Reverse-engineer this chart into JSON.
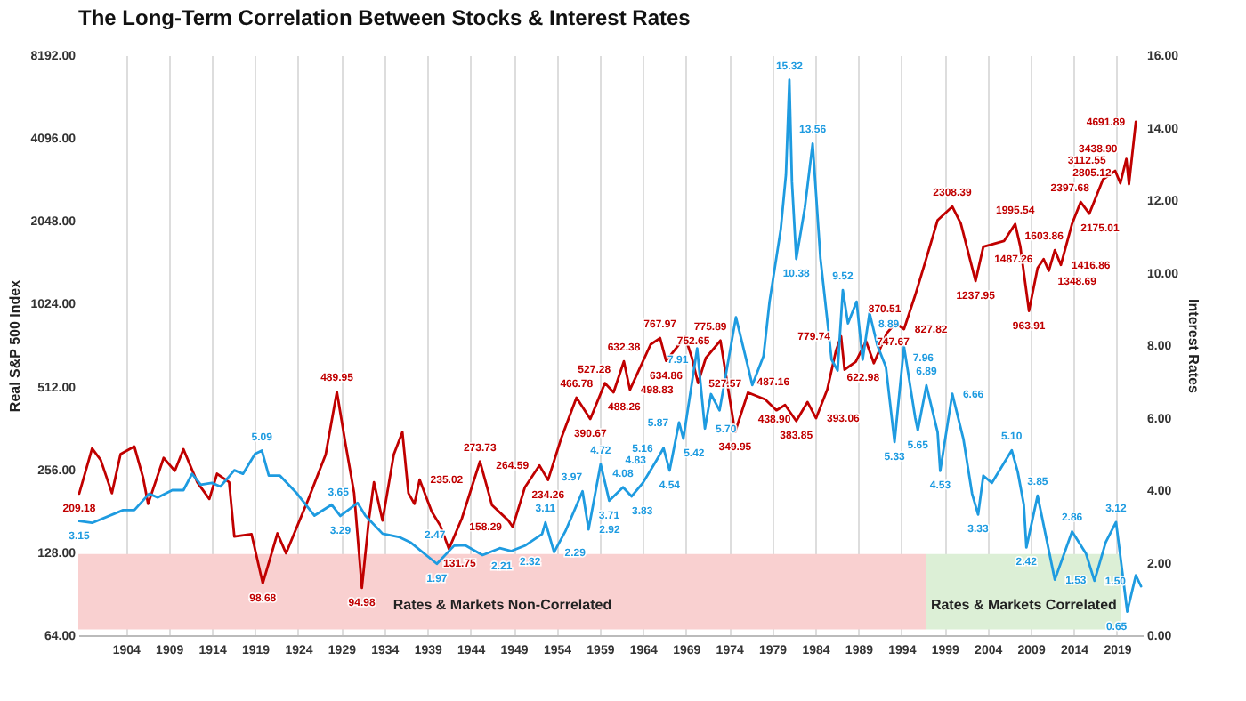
{
  "chart_data": {
    "type": "line",
    "title": "The Long-Term Correlation Between Stocks & Interest Rates",
    "ylabel": "Real S&P 500 Index",
    "y2label": "Interest Rates",
    "xlim": [
      1898.5,
      2022
    ],
    "xticks": [
      1904,
      1909,
      1914,
      1919,
      1924,
      1929,
      1934,
      1939,
      1944,
      1949,
      1954,
      1959,
      1964,
      1969,
      1974,
      1979,
      1984,
      1989,
      1994,
      1999,
      2004,
      2009,
      2014,
      2019
    ],
    "ylim": [
      64,
      8192
    ],
    "yticks": [
      {
        "value": 64,
        "label": "64.00"
      },
      {
        "value": 128,
        "label": "128.00"
      },
      {
        "value": 256,
        "label": "256.00"
      },
      {
        "value": 512,
        "label": "512.00"
      },
      {
        "value": 1024,
        "label": "1024.00"
      },
      {
        "value": 2048,
        "label": "2048.00"
      },
      {
        "value": 4096,
        "label": "4096.00"
      },
      {
        "value": 8192,
        "label": "8192.00"
      }
    ],
    "y2lim": [
      0,
      16
    ],
    "y2ticks": [
      {
        "value": 0,
        "label": "0.00"
      },
      {
        "value": 2,
        "label": "2.00"
      },
      {
        "value": 4,
        "label": "4.00"
      },
      {
        "value": 6,
        "label": "6.00"
      },
      {
        "value": 8,
        "label": "8.00"
      },
      {
        "value": 10,
        "label": "10.00"
      },
      {
        "value": 12,
        "label": "12.00"
      },
      {
        "value": 14,
        "label": "14.00"
      },
      {
        "value": 16,
        "label": "16.00"
      }
    ],
    "log": "y",
    "grid": "x",
    "bands": [
      {
        "axis": "x",
        "from": 1898.5,
        "to": 1996.9,
        "label": "Rates & Markets Non-Correlated",
        "color": "#f9d0d0"
      },
      {
        "axis": "x",
        "from": 1996.9,
        "to": 2019.5,
        "label": "Rates & Markets Correlated",
        "color": "#dcefd6"
      }
    ],
    "series": [
      {
        "color": "#c00000",
        "x": [
          1898.6,
          1900.1,
          1901.1,
          1902.4,
          1903.4,
          1905,
          1906,
          1906.6,
          1908.4,
          1909.7,
          1910.7,
          1912.3,
          1913.7,
          1914.6,
          1916,
          1916.6,
          1918.6,
          1919.9,
          1921.6,
          1922.6,
          1925.2,
          1927.2,
          1928.5,
          1929.5,
          1930.5,
          1931.4,
          1932.2,
          1932.8,
          1933.8,
          1935.1,
          1936.1,
          1936.8,
          1937.5,
          1938.1,
          1939.5,
          1940.5,
          1941.5,
          1943,
          1945.1,
          1946.5,
          1948.4,
          1948.9,
          1950.3,
          1952,
          1953,
          1954.5,
          1956.3,
          1957.9,
          1959.6,
          1960.6,
          1961.8,
          1962.5,
          1964.9,
          1966,
          1966.7,
          1968.9,
          1969.7,
          1970.4,
          1971.3,
          1973,
          1974.7,
          1976.2,
          1978.2,
          1979.5,
          1980.5,
          1981.8,
          1983.1,
          1984.1,
          1985.4,
          1986.4,
          1987,
          1987.4,
          1988.7,
          1989.9,
          1990.8,
          1992.3,
          1993.3,
          1994.3,
          1995.6,
          1996.9,
          1998.2,
          1999.9,
          2000.9,
          2002.6,
          2003.5,
          2005.9,
          2007.2,
          2007.8,
          2008.8,
          2009.8,
          2010.5,
          2011.1,
          2011.8,
          2012.5,
          2013.8,
          2014.8,
          2015.8,
          2017.4,
          2018.8,
          2019.4,
          2020.1,
          2020.4,
          2021.2
        ],
        "values": [
          209.18,
          305,
          277,
          210,
          291,
          310,
          240,
          192,
          282,
          253,
          303,
          230,
          200,
          247,
          230,
          146,
          149,
          98.68,
          150,
          127,
          200,
          290,
          489.95,
          317,
          210,
          94.98,
          167,
          230,
          167,
          290,
          350,
          210,
          192,
          235.02,
          180,
          160,
          131.75,
          170,
          273.73,
          190,
          167,
          158.29,
          220,
          264.59,
          234.26,
          330,
          466.78,
          390.67,
          527.28,
          488.26,
          632.38,
          498.83,
          728,
          767.97,
          634.86,
          775.89,
          650,
          527.57,
          650,
          752.65,
          349.95,
          487.16,
          460,
          420,
          438.9,
          383.85,
          450,
          393.06,
          500,
          690,
          779.74,
          590,
          630,
          747.67,
          622.98,
          800,
          870.51,
          827.82,
          1100,
          1500,
          2060,
          2308.39,
          2000,
          1237.95,
          1650,
          1730,
          1995.54,
          1650,
          963.91,
          1380,
          1487.26,
          1348.69,
          1603.86,
          1416.86,
          2000,
          2397.68,
          2175.01,
          2900,
          3112.55,
          2805.12,
          3438.9,
          2782,
          4691.89
        ],
        "value_labels": [
          "209.18",
          null,
          null,
          null,
          null,
          null,
          null,
          null,
          null,
          null,
          null,
          null,
          null,
          null,
          null,
          null,
          null,
          "98.68",
          null,
          null,
          null,
          null,
          "489.95",
          null,
          null,
          "94.98",
          null,
          null,
          null,
          null,
          null,
          null,
          null,
          "235.02",
          null,
          null,
          "131.75",
          null,
          "273.73",
          null,
          null,
          "158.29",
          null,
          "264.59",
          "234.26",
          null,
          "466.78",
          "390.67",
          "527.28",
          "488.26",
          "632.38",
          "498.83",
          null,
          "767.97",
          "634.86",
          "775.89",
          null,
          "527.57",
          null,
          "752.65",
          "349.95",
          "487.16",
          null,
          null,
          "438.90",
          "383.85",
          null,
          "393.06",
          null,
          null,
          "779.74",
          null,
          null,
          "747.67",
          "622.98",
          null,
          "870.51",
          "827.82",
          null,
          null,
          null,
          "2308.39",
          null,
          "1237.95",
          null,
          null,
          "1995.54",
          null,
          "963.91",
          null,
          "1487.26",
          "1348.69",
          "1603.86",
          "1416.86",
          null,
          "2397.68",
          "2175.01",
          null,
          "3112.55",
          "2805.12",
          "3438.90",
          null,
          "4691.89"
        ]
      },
      {
        "color": "#1e9be0",
        "axis": "y2",
        "x": [
          1898.6,
          1900.1,
          1903.7,
          1905,
          1906.7,
          1907.7,
          1909.4,
          1910.7,
          1911.7,
          1912.7,
          1914,
          1915,
          1916.6,
          1917.6,
          1919,
          1919.8,
          1920.6,
          1921.9,
          1923.9,
          1925.9,
          1927.9,
          1928.9,
          1930.9,
          1931.8,
          1933.8,
          1935.8,
          1937.1,
          1940.1,
          1942.1,
          1943.4,
          1945.4,
          1947.4,
          1948.7,
          1950.4,
          1952.3,
          1952.7,
          1953.7,
          1955,
          1957,
          1957.7,
          1959.1,
          1960.1,
          1961.7,
          1962.7,
          1964,
          1965.6,
          1966.4,
          1967.1,
          1968.2,
          1968.7,
          1970.3,
          1971.2,
          1971.9,
          1972.9,
          1974.8,
          1976.2,
          1976.7,
          1978,
          1978.7,
          1980,
          1980.6,
          1981,
          1981.3,
          1981.8,
          1982.8,
          1983.7,
          1984.6,
          1985.3,
          1985.9,
          1986.6,
          1987.2,
          1987.8,
          1988.8,
          1989.5,
          1990.3,
          1991.2,
          1992.2,
          1993.2,
          1994.3,
          1995.6,
          1995.9,
          1996.9,
          1998.2,
          1998.5,
          1999.9,
          2001.2,
          2002.2,
          2002.9,
          2003.5,
          2004.5,
          2006.8,
          2007.5,
          2008.2,
          2008.5,
          2009.8,
          2011.8,
          2013.8,
          2015.4,
          2016.4,
          2017.7,
          2018.9,
          2019.6,
          2020.2,
          2021.2,
          2021.8
        ],
        "values": [
          3.15,
          3.1,
          3.45,
          3.45,
          3.9,
          3.8,
          4.0,
          4.0,
          4.45,
          4.15,
          4.2,
          4.1,
          4.55,
          4.45,
          5.0,
          5.09,
          4.4,
          4.4,
          3.9,
          3.3,
          3.6,
          3.29,
          3.65,
          3.3,
          2.8,
          2.7,
          2.55,
          1.97,
          2.47,
          2.48,
          2.21,
          2.4,
          2.32,
          2.48,
          2.79,
          3.11,
          2.29,
          2.86,
          3.97,
          2.92,
          4.72,
          3.71,
          4.08,
          3.83,
          4.2,
          4.83,
          5.16,
          4.54,
          5.87,
          5.42,
          7.91,
          5.7,
          6.65,
          6.2,
          8.77,
          7.4,
          6.9,
          7.7,
          9.2,
          11.2,
          12.7,
          15.32,
          12.5,
          10.38,
          11.8,
          13.56,
          10.4,
          8.9,
          7.6,
          7.3,
          9.52,
          8.6,
          9.2,
          7.6,
          8.89,
          8.0,
          7.4,
          5.33,
          7.96,
          6.0,
          5.65,
          6.89,
          5.6,
          4.53,
          6.66,
          5.4,
          3.9,
          3.33,
          4.4,
          4.2,
          5.1,
          4.5,
          3.6,
          2.42,
          3.85,
          1.53,
          2.86,
          2.26,
          1.5,
          2.56,
          3.12,
          1.8,
          0.65,
          1.65,
          1.35
        ],
        "value_labels": [
          "3.15",
          null,
          null,
          null,
          null,
          null,
          null,
          null,
          null,
          null,
          null,
          null,
          null,
          null,
          null,
          "5.09",
          null,
          null,
          null,
          null,
          null,
          "3.29",
          "3.65",
          null,
          null,
          null,
          null,
          "1.97",
          "2.47",
          null,
          "2.21",
          null,
          "2.32",
          null,
          null,
          "3.11",
          "2.29",
          null,
          "3.97",
          "2.92",
          "4.72",
          "3.71",
          "4.08",
          "3.83",
          null,
          "4.83",
          "5.16",
          "4.54",
          "5.87",
          "5.42",
          "7.91",
          "5.70",
          null,
          null,
          null,
          null,
          null,
          null,
          null,
          null,
          null,
          "15.32",
          null,
          "10.38",
          null,
          "13.56",
          null,
          null,
          null,
          null,
          "9.52",
          null,
          null,
          null,
          "8.89",
          null,
          null,
          "5.33",
          "7.96",
          null,
          "5.65",
          "6.89",
          null,
          "4.53",
          "6.66",
          null,
          null,
          "3.33",
          null,
          null,
          "5.10",
          null,
          null,
          "2.42",
          "3.85",
          "1.53",
          "2.86",
          null,
          "1.50",
          null,
          "3.12",
          null,
          "0.65",
          null,
          null
        ]
      }
    ]
  }
}
